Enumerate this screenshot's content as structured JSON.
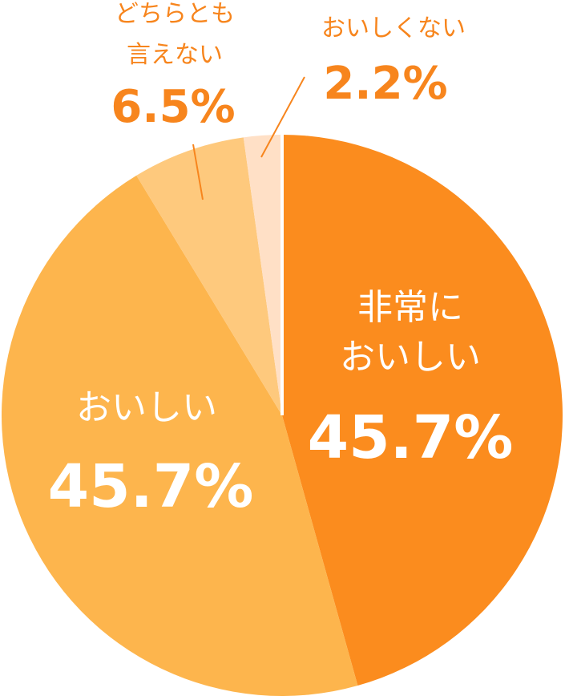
{
  "chart_data": {
    "type": "pie",
    "slices": [
      {
        "label": "非常に\nおいしい",
        "value": 45.7,
        "value_text": "45.7%",
        "color": "#fb8c1e",
        "label_color": "#ffffff",
        "label_placement": "inside"
      },
      {
        "label": "おいしい",
        "value": 45.7,
        "value_text": "45.7%",
        "color": "#fdb54d",
        "label_color": "#ffffff",
        "label_placement": "inside"
      },
      {
        "label": "どちらとも\n言えない",
        "value": 6.5,
        "value_text": "6.5%",
        "color": "#fec97d",
        "label_color": "#f7851d",
        "label_placement": "outside"
      },
      {
        "label": "おいしくない",
        "value": 2.2,
        "value_text": "2.2%",
        "color": "#ffe0c6",
        "label_color": "#f7851d",
        "label_placement": "outside"
      }
    ],
    "start": "12 o'clock",
    "direction": "clockwise",
    "legend": "none"
  }
}
